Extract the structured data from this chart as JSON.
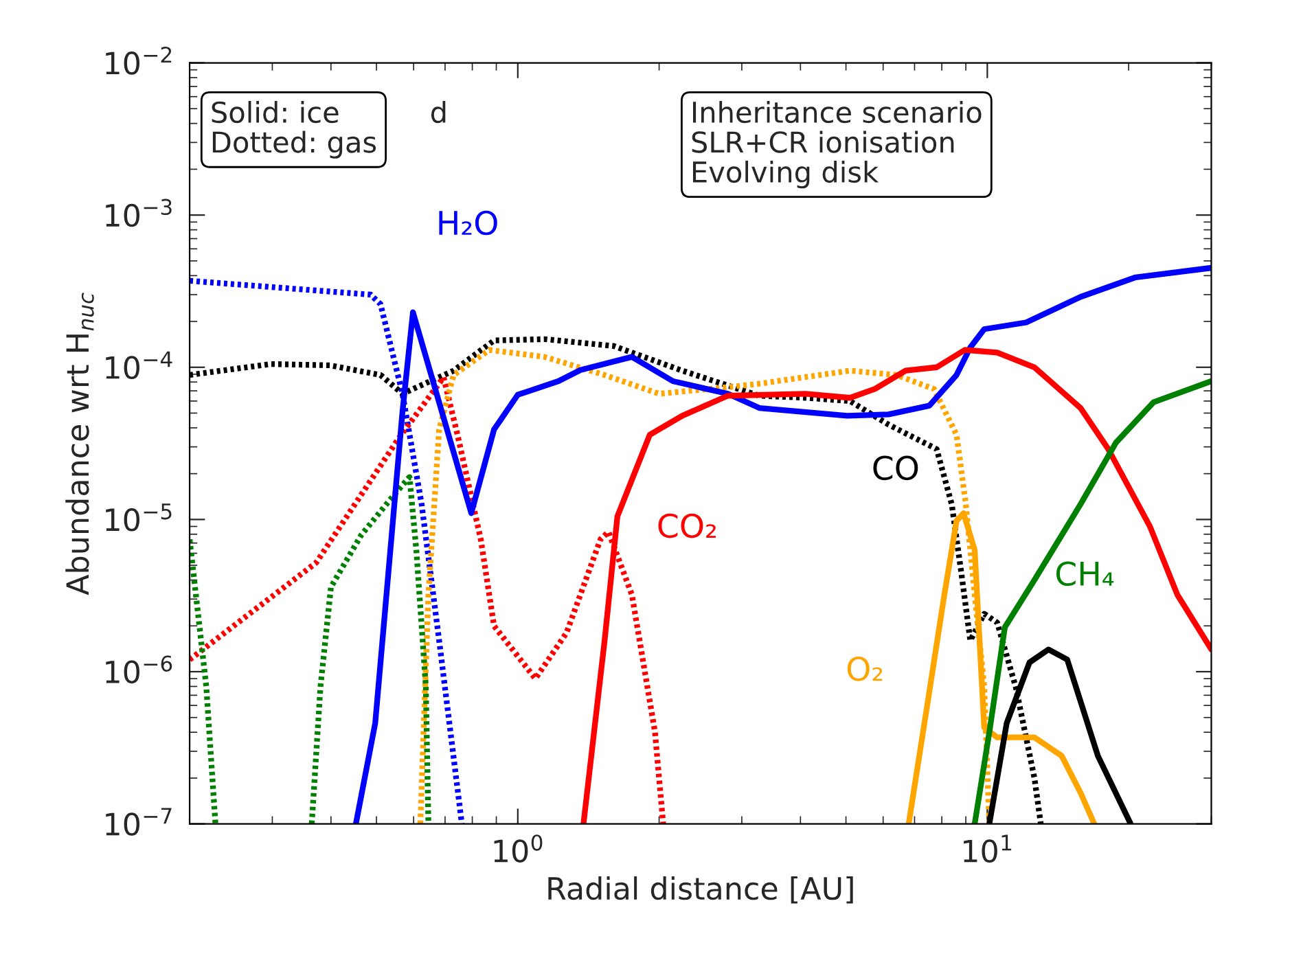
{
  "chart_data": {
    "type": "line",
    "xlabel": "Radial distance [AU]",
    "ylabel": "Abundance wrt H$_{nuc}$",
    "log": "xy",
    "xlim": [
      0.2,
      30
    ],
    "ylim": [
      1e-07,
      0.01
    ],
    "xticks": [
      {
        "value": 1,
        "label": "10$^{0}$"
      },
      {
        "value": 10,
        "label": "10$^{1}$"
      }
    ],
    "yticks": [
      {
        "value": 1e-07,
        "label": "10$^{−7}$"
      },
      {
        "value": 1e-06,
        "label": "10$^{−6}$"
      },
      {
        "value": 1e-05,
        "label": "10$^{−5}$"
      },
      {
        "value": 0.0001,
        "label": "10$^{−4}$"
      },
      {
        "value": 0.001,
        "label": "10$^{−3}$"
      },
      {
        "value": 0.01,
        "label": "10$^{−2}$"
      }
    ],
    "series": [
      {
        "color": "#0000ff",
        "line_style": "dotted",
        "x": [
          0.2,
          0.486,
          0.51,
          0.568,
          0.624,
          0.68,
          0.76
        ],
        "values": [
          0.00037,
          0.0003,
          0.00026,
          6.7e-05,
          1.26e-05,
          1.6e-06,
          1e-07
        ]
      },
      {
        "color": "#000000",
        "line_style": "dotted",
        "x": [
          0.2,
          0.298,
          0.398,
          0.51,
          0.568,
          0.73,
          0.89,
          1.14,
          1.6,
          2.24,
          3.27,
          4.1,
          5.1,
          6.16,
          7.8,
          8.4,
          8.8,
          9.2,
          9.85,
          10.5,
          11.5,
          12.6,
          13.0
        ],
        "values": [
          8.9e-05,
          0.000105,
          0.000103,
          8.9e-05,
          6.7e-05,
          9.5e-05,
          0.00015,
          0.000153,
          0.000138,
          9.5e-05,
          6.5e-05,
          6.3e-05,
          6e-05,
          4.2e-05,
          2.9e-05,
          1.26e-05,
          4.5e-06,
          1.6e-06,
          2.4e-06,
          2.1e-06,
          7.9e-07,
          2e-07,
          1e-07
        ]
      },
      {
        "color": "#ff0000",
        "line_style": "dotted",
        "x": [
          0.2,
          0.372,
          0.557,
          0.695,
          0.744,
          0.834,
          0.89,
          1.09,
          1.27,
          1.5,
          1.56,
          1.75,
          1.96,
          2.04
        ],
        "values": [
          1.2e-06,
          5.2e-06,
          3.4e-05,
          8.6e-05,
          3.6e-05,
          7.4e-06,
          2e-06,
          9e-07,
          1.8e-06,
          7.4e-06,
          8.3e-06,
          3.2e-06,
          4e-07,
          1e-07
        ]
      },
      {
        "color": "#ffa500",
        "line_style": "dotted",
        "x": [
          0.62,
          0.645,
          0.68,
          0.73,
          0.87,
          1.14,
          1.53,
          2.0,
          2.8,
          3.27,
          5.1,
          6.4,
          7.7,
          8.6,
          9.0,
          9.4,
          9.85,
          10.1
        ],
        "values": [
          1e-07,
          3.2e-06,
          3.9e-05,
          8.9e-05,
          0.00013,
          0.000117,
          8.9e-05,
          6.7e-05,
          7.4e-05,
          7.8e-05,
          9.5e-05,
          8.9e-05,
          7.2e-05,
          3.6e-05,
          1.26e-05,
          3.2e-06,
          8e-07,
          1e-07
        ]
      },
      {
        "color": "#008000",
        "line_style": "dotted",
        "x": [
          0.2,
          0.217,
          0.227,
          0.3,
          0.364,
          0.38,
          0.4,
          0.464,
          0.545,
          0.588,
          0.608,
          0.637,
          0.645
        ],
        "values": [
          7.4e-06,
          8e-07,
          1e-07,
          null,
          1e-07,
          8e-07,
          3.6e-06,
          7.9e-06,
          1.45e-05,
          1.9e-05,
          6.3e-06,
          8e-07,
          1e-07
        ]
      },
      {
        "name": "H₂O",
        "color": "#0000ff",
        "line_style": "solid",
        "x": [
          0.452,
          0.497,
          0.568,
          0.598,
          0.796,
          0.89,
          1.0,
          1.22,
          1.36,
          1.75,
          2.14,
          2.8,
          3.27,
          5.03,
          6.16,
          7.53,
          8.6,
          9.2,
          9.85,
          12.1,
          15.8,
          20.7,
          30
        ],
        "values": [
          1e-07,
          4.6e-07,
          5.1e-05,
          0.00023,
          1.1e-05,
          3.9e-05,
          6.6e-05,
          8.1e-05,
          9.6e-05,
          0.000117,
          8.1e-05,
          6.7e-05,
          5.4e-05,
          4.8e-05,
          4.9e-05,
          5.6e-05,
          8.9e-05,
          0.000135,
          0.000178,
          0.000197,
          0.00029,
          0.00039,
          0.00045
        ]
      },
      {
        "name": "CO₂",
        "color": "#ff0000",
        "line_style": "solid",
        "x": [
          1.38,
          1.53,
          1.63,
          1.91,
          2.24,
          2.8,
          4.1,
          5.1,
          5.76,
          6.7,
          7.8,
          8.96,
          10.5,
          12.6,
          15.8,
          18.1,
          22.2,
          25.4,
          30
        ],
        "values": [
          1e-07,
          1.58e-06,
          1.05e-05,
          3.6e-05,
          4.8e-05,
          6.5e-05,
          6.7e-05,
          6.3e-05,
          7.2e-05,
          9.5e-05,
          0.0001,
          0.00013,
          0.000125,
          0.0001,
          5.4e-05,
          2.9e-05,
          9e-06,
          3.2e-06,
          1.4e-06
        ]
      },
      {
        "name": "O₂",
        "color": "#ffa500",
        "line_style": "solid",
        "x": [
          6.8,
          7.5,
          8.1,
          8.6,
          8.9,
          9.4,
          9.85,
          10.5,
          12.6,
          14.4,
          15.8,
          16.9
        ],
        "values": [
          1e-07,
          6.9e-07,
          3.2e-06,
          9.8e-06,
          1.1e-05,
          6.3e-06,
          4.3e-07,
          3.7e-07,
          3.7e-07,
          2.8e-07,
          1.6e-07,
          1e-07
        ]
      },
      {
        "name": "CH₄",
        "color": "#008000",
        "line_style": "solid",
        "x": [
          9.4,
          10.1,
          10.9,
          12.6,
          15.8,
          18.8,
          22.6,
          30
        ],
        "values": [
          1e-07,
          4e-07,
          1.96e-06,
          4e-06,
          1.26e-05,
          3.2e-05,
          5.9e-05,
          8.1e-05
        ]
      },
      {
        "name": "CO",
        "color": "#000000",
        "line_style": "solid",
        "x": [
          10.1,
          11.0,
          12.3,
          13.5,
          14.8,
          17.2,
          20.2
        ],
        "values": [
          1e-07,
          4.6e-07,
          1.15e-06,
          1.4e-06,
          1.2e-06,
          2.8e-07,
          1e-07
        ]
      }
    ],
    "annotations": [
      "Solid: ice\nDotted: gas",
      "d",
      "Inheritance scenario\nSLR+CR ionisation\nEvolving disk"
    ]
  }
}
